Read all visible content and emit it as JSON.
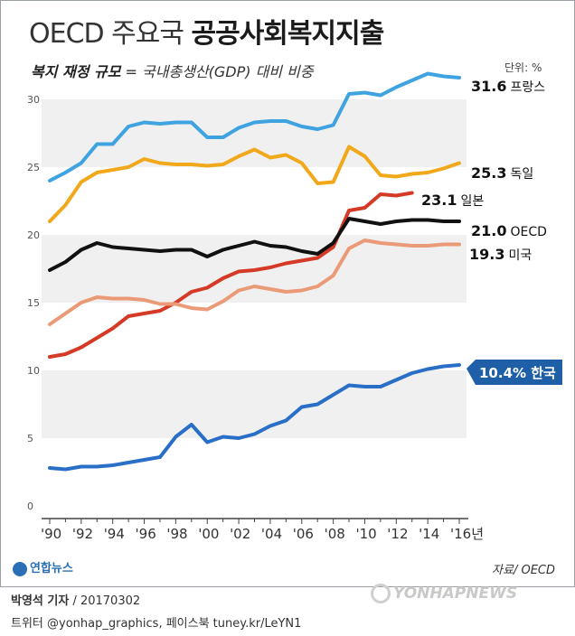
{
  "header": {
    "title_light": "OECD 주요국",
    "title_bold": "공공사회복지지출",
    "subtitle_bold": "복지 재정 규모",
    "subtitle_rest": " = 국내총생산(GDP) 대비 비중",
    "unit": "단위: %"
  },
  "chart_data": {
    "type": "line",
    "title": "OECD 주요국 공공사회복지지출",
    "ylim": [
      0,
      30
    ],
    "y_ticks": [
      "0",
      "5",
      "10",
      "15",
      "20",
      "25",
      "30"
    ],
    "x": [
      1990,
      1991,
      1992,
      1993,
      1994,
      1995,
      1996,
      1997,
      1998,
      1999,
      2000,
      2001,
      2002,
      2003,
      2004,
      2005,
      2006,
      2007,
      2008,
      2009,
      2010,
      2011,
      2012,
      2013,
      2014,
      2015,
      2016
    ],
    "x_tick_labels": [
      "'90",
      "'92",
      "'94",
      "'96",
      "'98",
      "'00",
      "'02",
      "'04",
      "'06",
      "'08",
      "'10",
      "'12",
      "'14",
      "'16년"
    ],
    "series": [
      {
        "name": "프랑스",
        "end_label": "31.6",
        "color": "#3ea3e0",
        "values": [
          24.0,
          24.6,
          25.3,
          26.7,
          26.7,
          28.0,
          28.3,
          28.2,
          28.3,
          28.3,
          27.2,
          27.2,
          27.9,
          28.3,
          28.4,
          28.4,
          28.0,
          27.8,
          28.1,
          30.4,
          30.5,
          30.3,
          30.9,
          31.4,
          31.9,
          31.7,
          31.6
        ]
      },
      {
        "name": "독일",
        "end_label": "25.3",
        "color": "#f1a81a",
        "values": [
          21.0,
          22.2,
          23.9,
          24.6,
          24.8,
          25.0,
          25.6,
          25.3,
          25.2,
          25.2,
          25.1,
          25.2,
          25.8,
          26.3,
          25.7,
          25.9,
          25.3,
          23.8,
          23.9,
          26.5,
          25.8,
          24.4,
          24.3,
          24.5,
          24.6,
          24.9,
          25.3
        ]
      },
      {
        "name": "일본",
        "end_label": "23.1",
        "color": "#d43a26",
        "values": [
          11.0,
          11.2,
          11.7,
          12.4,
          13.1,
          14.0,
          14.2,
          14.4,
          15.0,
          15.8,
          16.1,
          16.8,
          17.3,
          17.4,
          17.6,
          17.9,
          18.1,
          18.3,
          19.1,
          21.8,
          22.0,
          23.0,
          22.9,
          23.1,
          null,
          null,
          null
        ]
      },
      {
        "name": "OECD",
        "end_label": "21.0",
        "color": "#111111",
        "values": [
          17.4,
          18.0,
          18.9,
          19.4,
          19.1,
          19.0,
          18.9,
          18.8,
          18.9,
          18.9,
          18.4,
          18.9,
          19.2,
          19.5,
          19.2,
          19.1,
          18.8,
          18.6,
          19.4,
          21.2,
          21.0,
          20.8,
          21.0,
          21.1,
          21.1,
          21.0,
          21.0
        ]
      },
      {
        "name": "미국",
        "end_label": "19.3",
        "color": "#eb9a78",
        "values": [
          13.4,
          14.2,
          15.0,
          15.4,
          15.3,
          15.3,
          15.2,
          14.9,
          14.9,
          14.6,
          14.5,
          15.1,
          15.9,
          16.2,
          16.0,
          15.8,
          15.9,
          16.2,
          17.0,
          19.0,
          19.6,
          19.4,
          19.3,
          19.2,
          19.2,
          19.3,
          19.3
        ]
      },
      {
        "name": "한국",
        "end_label": "10.4%",
        "color": "#2a6fc7",
        "values": [
          2.8,
          2.7,
          2.9,
          2.9,
          3.0,
          3.2,
          3.4,
          3.6,
          5.1,
          6.0,
          4.7,
          5.1,
          5.0,
          5.3,
          5.9,
          6.3,
          7.3,
          7.5,
          8.2,
          8.9,
          8.8,
          8.8,
          9.3,
          9.8,
          10.1,
          10.3,
          10.4
        ]
      }
    ]
  },
  "footer": {
    "logo": "연합뉴스",
    "source": "자료/ OECD",
    "credit_name": "박영석 기자",
    "credit_date": " / 20170302",
    "credit_social": "트위터 @yonhap_graphics, 페이스북 tuney.kr/LeYN1",
    "watermark": "YONHAPNEWS"
  }
}
